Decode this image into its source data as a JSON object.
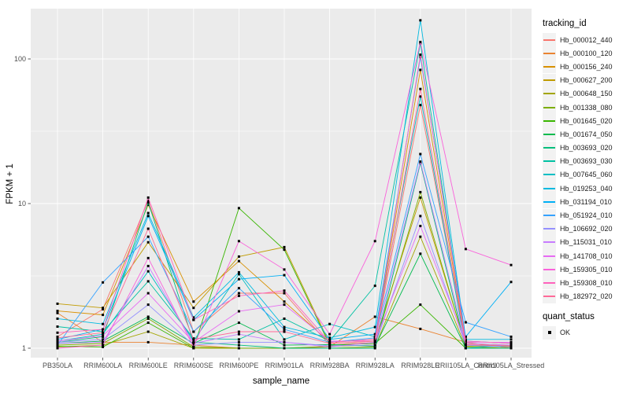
{
  "panel": {
    "bg": "#EBEBEB",
    "grid_color": "#FFFFFF",
    "tick_color": "#333333",
    "tick_label_color": "#4D4D4D"
  },
  "chart_data": {
    "type": "line",
    "title": "",
    "xlabel": "sample_name",
    "ylabel": "FPKM + 1",
    "y_scale": "log10",
    "y_ticks": [
      1,
      10,
      100
    ],
    "y_minor_ticks": [
      3.162,
      31.623
    ],
    "ylim": [
      0.86,
      230
    ],
    "grid": true,
    "legend_position": "right",
    "point_marker": "filled-square",
    "point_color": "#000000",
    "categories": [
      "PB350LA",
      "RRIM600LA",
      "RRIM600LE",
      "RRIM600SE",
      "RRIM600PE",
      "RRIM901LA",
      "RRIM928BA",
      "RRIM928LA",
      "RRIM928LE",
      "RRII105LA_Control",
      "RRII105LA_Stressed"
    ],
    "series": [
      {
        "name": "Hb_000012_440",
        "color": "#F8766D",
        "values": [
          1.2,
          1.86,
          10.5,
          1.3,
          2.4,
          2.4,
          1.05,
          1.1,
          48,
          1.05,
          1.02
        ]
      },
      {
        "name": "Hb_000100_120",
        "color": "#EA8331",
        "values": [
          1.75,
          1.1,
          1.1,
          1.05,
          1.0,
          1.0,
          1.02,
          1.65,
          1.36,
          1.1,
          1.0
        ]
      },
      {
        "name": "Hb_000156_240",
        "color": "#D89000",
        "values": [
          1.81,
          1.7,
          9.8,
          2.1,
          4.0,
          2.1,
          1.1,
          1.15,
          84,
          1.08,
          1.05
        ]
      },
      {
        "name": "Hb_000627_200",
        "color": "#C09B00",
        "values": [
          2.03,
          1.9,
          5.4,
          1.9,
          4.3,
          5.0,
          1.08,
          1.12,
          11,
          1.05,
          1.03
        ]
      },
      {
        "name": "Hb_000648_150",
        "color": "#A3A500",
        "values": [
          1.02,
          1.05,
          1.3,
          1.0,
          1.0,
          1.0,
          1.0,
          1.02,
          5.9,
          1.02,
          1.0
        ]
      },
      {
        "name": "Hb_001338_080",
        "color": "#7CAE00",
        "values": [
          1.05,
          1.08,
          1.6,
          1.02,
          1.0,
          1.0,
          1.03,
          1.05,
          12,
          1.03,
          1.02
        ]
      },
      {
        "name": "Hb_001645_020",
        "color": "#39B600",
        "values": [
          1.03,
          1.02,
          1.5,
          1.0,
          9.3,
          4.8,
          1.05,
          1.08,
          2.0,
          1.0,
          1.0
        ]
      },
      {
        "name": "Hb_001674_050",
        "color": "#00BB4E",
        "values": [
          1.08,
          1.12,
          1.65,
          1.08,
          1.5,
          1.05,
          1.06,
          1.03,
          4.5,
          1.0,
          1.0
        ]
      },
      {
        "name": "Hb_003693_020",
        "color": "#00BF7D",
        "values": [
          1.1,
          1.2,
          10.2,
          1.1,
          1.05,
          1.0,
          1.0,
          1.0,
          19,
          1.0,
          1.0
        ]
      },
      {
        "name": "Hb_003693_030",
        "color": "#00C1A3",
        "values": [
          1.41,
          1.3,
          2.9,
          1.17,
          1.15,
          1.6,
          1.12,
          2.7,
          128,
          1.12,
          1.08
        ]
      },
      {
        "name": "Hb_007645_060",
        "color": "#00BFC4",
        "values": [
          1.12,
          1.25,
          3.4,
          1.12,
          3.25,
          1.15,
          1.47,
          1.2,
          55,
          1.0,
          1.05
        ]
      },
      {
        "name": "Hb_019253_040",
        "color": "#00BAE0",
        "values": [
          1.6,
          1.47,
          8.6,
          1.63,
          3.35,
          1.4,
          1.18,
          1.4,
          185,
          1.15,
          1.15
        ]
      },
      {
        "name": "Hb_031194_010",
        "color": "#00B0F6",
        "values": [
          1.15,
          1.35,
          8.2,
          1.57,
          3.0,
          3.2,
          1.15,
          1.25,
          103,
          1.2,
          2.87
        ]
      },
      {
        "name": "Hb_051924_010",
        "color": "#35A2FF",
        "values": [
          1.05,
          2.85,
          5.9,
          1.3,
          2.6,
          1.35,
          1.1,
          1.18,
          22,
          1.51,
          1.2
        ]
      },
      {
        "name": "Hb_106692_020",
        "color": "#9590FF",
        "values": [
          1.1,
          1.15,
          2.0,
          1.05,
          1.1,
          1.1,
          1.04,
          1.05,
          8.2,
          1.05,
          1.02
        ]
      },
      {
        "name": "Hb_115031_010",
        "color": "#C77CFF",
        "values": [
          1.08,
          1.1,
          3.7,
          1.08,
          1.25,
          1.1,
          1.02,
          1.1,
          19.5,
          1.08,
          1.05
        ]
      },
      {
        "name": "Hb_141708_010",
        "color": "#E76BF3",
        "values": [
          1.12,
          1.22,
          2.4,
          1.1,
          1.8,
          2.0,
          1.12,
          1.12,
          7.0,
          1.1,
          1.1
        ]
      },
      {
        "name": "Hb_159305_010",
        "color": "#FA62DB",
        "values": [
          1.0,
          1.05,
          4.2,
          1.02,
          5.5,
          3.5,
          1.25,
          5.5,
          131,
          4.85,
          3.76
        ]
      },
      {
        "name": "Hb_159308_010",
        "color": "#FF62BC",
        "values": [
          1.28,
          1.35,
          11.0,
          1.57,
          2.3,
          2.5,
          1.1,
          1.15,
          107,
          1.12,
          1.08
        ]
      },
      {
        "name": "Hb_182972_020",
        "color": "#FF6A98",
        "values": [
          1.18,
          1.28,
          6.7,
          1.15,
          1.3,
          1.3,
          1.08,
          1.12,
          62,
          1.06,
          1.04
        ]
      }
    ],
    "legend": {
      "color_title": "tracking_id",
      "shape_title": "quant_status",
      "shape_items": [
        {
          "label": "OK"
        }
      ]
    }
  }
}
